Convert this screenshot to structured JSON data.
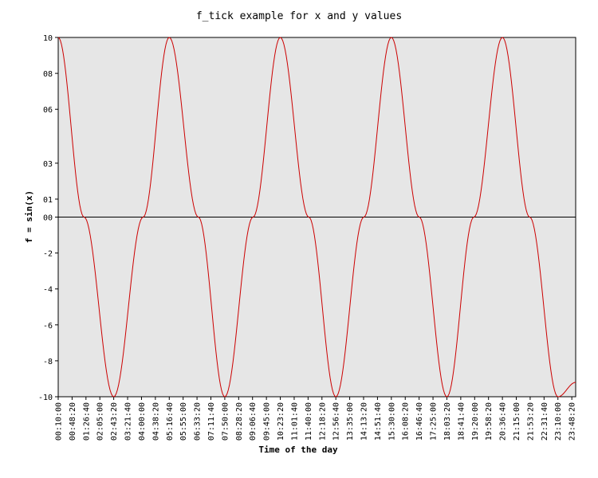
{
  "chart_data": {
    "type": "line",
    "title": "f_tick example for x and y values",
    "xlabel": "Time of the day",
    "ylabel": "f = sin(x)",
    "ylim": [
      -10,
      10
    ],
    "yticks": [
      {
        "value": 10,
        "label": "10"
      },
      {
        "value": 8,
        "label": "08"
      },
      {
        "value": 6,
        "label": "06"
      },
      {
        "value": 3,
        "label": "03"
      },
      {
        "value": 1,
        "label": "01"
      },
      {
        "value": 0,
        "label": "00"
      },
      {
        "value": -2,
        "label": "-2"
      },
      {
        "value": -4,
        "label": "-4"
      },
      {
        "value": -6,
        "label": "-6"
      },
      {
        "value": -8,
        "label": "-8"
      },
      {
        "value": -10,
        "label": "-10"
      }
    ],
    "xlim": [
      "00:10:00",
      "23:59:00"
    ],
    "xticks": [
      "00:10:00",
      "00:48:20",
      "01:26:40",
      "02:05:00",
      "02:43:20",
      "03:21:40",
      "04:00:00",
      "04:38:20",
      "05:16:40",
      "05:55:00",
      "06:33:20",
      "07:11:40",
      "07:50:00",
      "08:28:20",
      "09:06:40",
      "09:45:00",
      "10:23:20",
      "11:01:40",
      "11:40:00",
      "12:18:20",
      "12:56:40",
      "13:35:00",
      "14:13:20",
      "14:51:40",
      "15:30:00",
      "16:08:20",
      "16:46:40",
      "17:25:00",
      "18:03:20",
      "18:41:40",
      "19:20:00",
      "19:58:20",
      "20:36:40",
      "21:15:00",
      "21:53:20",
      "22:31:40",
      "23:10:00",
      "23:48:20"
    ],
    "series": [
      {
        "color": "#cc0000",
        "values_note": "",
        "points": [
          [
            "00:10:00",
            10
          ],
          [
            "01:21:30",
            0
          ],
          [
            "02:43:20",
            -10
          ],
          [
            "04:04:30",
            0
          ],
          [
            "05:16:40",
            10
          ],
          [
            "06:37:00",
            0
          ],
          [
            "07:50:00",
            -10
          ],
          [
            "09:08:00",
            0
          ],
          [
            "10:23:20",
            10
          ],
          [
            "11:42:00",
            0
          ],
          [
            "12:56:40",
            -10
          ],
          [
            "14:14:00",
            0
          ],
          [
            "15:30:00",
            10
          ],
          [
            "16:47:00",
            0
          ],
          [
            "18:03:20",
            -10
          ],
          [
            "19:18:00",
            0
          ],
          [
            "20:36:40",
            10
          ],
          [
            "21:52:00",
            0
          ],
          [
            "23:10:00",
            -10
          ],
          [
            "23:59:00",
            -9.2
          ]
        ]
      }
    ],
    "zero_line": true,
    "background": "#e6e6e6"
  }
}
